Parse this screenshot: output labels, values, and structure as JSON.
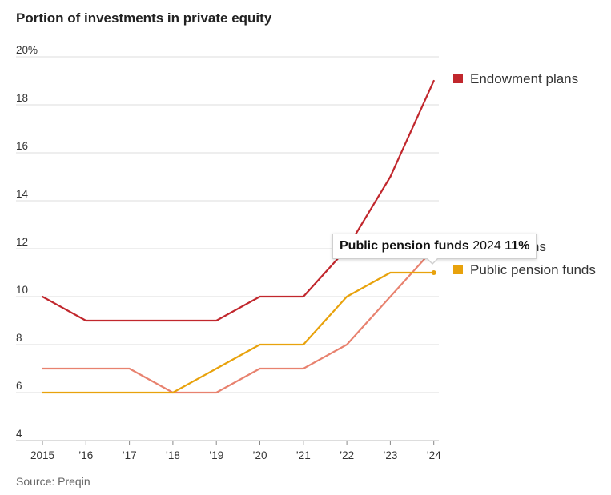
{
  "title": "Portion of investments in private equity",
  "source": "Source: Preqin",
  "chart_data": {
    "type": "line",
    "title": "Portion of investments in private equity",
    "categories": [
      "2015",
      "’16",
      "’17",
      "’18",
      "’19",
      "’20",
      "’21",
      "’22",
      "’23",
      "’24"
    ],
    "y_ticks": [
      "20%",
      "18",
      "16",
      "14",
      "12",
      "10",
      "8",
      "6",
      "4"
    ],
    "ylim": [
      4,
      20
    ],
    "grid": true,
    "legend_position": "right",
    "series": [
      {
        "name": "Endowment plans",
        "color": "#c1272d",
        "values": [
          10,
          9,
          9,
          9,
          9,
          10,
          10,
          12,
          15,
          19
        ]
      },
      {
        "name": "Public pension funds",
        "color": "#e8a20c",
        "values": [
          6,
          6,
          6,
          6,
          7,
          8,
          8,
          10,
          11,
          11
        ]
      },
      {
        "name": "",
        "color": "#e8826f",
        "values": [
          7,
          7,
          7,
          6,
          6,
          7,
          7,
          8,
          10,
          12
        ]
      }
    ],
    "legend_hidden_fragment": "ns",
    "tooltip": {
      "series": "Public pension funds",
      "year": "2024",
      "value": "11%"
    }
  }
}
